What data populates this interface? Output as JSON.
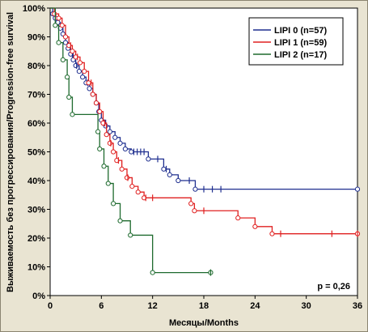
{
  "chart_data": {
    "type": "line",
    "xlabel": "Месяцы/Months",
    "ylabel": "Выживаемость без прогрессирования/Progression-free survival",
    "xlim": [
      0,
      36
    ],
    "ylim": [
      0,
      100
    ],
    "xticks": [
      0,
      6,
      12,
      18,
      24,
      30,
      36
    ],
    "yticks": [
      0,
      10,
      20,
      30,
      40,
      50,
      60,
      70,
      80,
      90,
      100
    ],
    "ytick_labels": [
      "0%",
      "10%",
      "20%",
      "30%",
      "40%",
      "50%",
      "60%",
      "70%",
      "80%",
      "90%",
      "100%"
    ],
    "grid": false,
    "legend_position": "top-right",
    "annotation": "p = 0,26",
    "series": [
      {
        "name": "LIPI 0 (n=57)",
        "color": "#1f2f8f",
        "steps": [
          [
            0,
            100
          ],
          [
            0.3,
            98
          ],
          [
            0.6,
            96.5
          ],
          [
            0.9,
            95
          ],
          [
            1.2,
            93
          ],
          [
            1.5,
            91
          ],
          [
            1.8,
            88
          ],
          [
            2.1,
            86
          ],
          [
            2.4,
            84
          ],
          [
            2.7,
            82
          ],
          [
            3.0,
            80
          ],
          [
            3.4,
            78
          ],
          [
            3.8,
            76
          ],
          [
            4.2,
            74
          ],
          [
            4.6,
            72
          ],
          [
            5.0,
            70
          ],
          [
            5.4,
            67
          ],
          [
            5.7,
            64
          ],
          [
            6.0,
            61
          ],
          [
            6.5,
            59
          ],
          [
            7.0,
            57
          ],
          [
            7.6,
            55
          ],
          [
            8.2,
            53
          ],
          [
            8.8,
            51
          ],
          [
            9.5,
            50
          ],
          [
            11.5,
            47.5
          ],
          [
            13.3,
            44
          ],
          [
            14.0,
            42
          ],
          [
            15.0,
            40
          ],
          [
            17.0,
            37
          ],
          [
            36,
            37
          ]
        ],
        "censors": [
          [
            2.6,
            84
          ],
          [
            3.1,
            80
          ],
          [
            4.4,
            74
          ],
          [
            6.2,
            61
          ],
          [
            9.8,
            50
          ],
          [
            10.2,
            50
          ],
          [
            10.6,
            50
          ],
          [
            11.0,
            50
          ],
          [
            12.6,
            47.5
          ],
          [
            13.6,
            44
          ],
          [
            16.3,
            40
          ],
          [
            18.0,
            37
          ],
          [
            19.0,
            37
          ],
          [
            20.0,
            37
          ]
        ]
      },
      {
        "name": "LIPI 1 (n=59)",
        "color": "#e02020",
        "steps": [
          [
            0,
            100
          ],
          [
            0.5,
            98
          ],
          [
            1.0,
            96.5
          ],
          [
            1.4,
            94
          ],
          [
            1.8,
            90
          ],
          [
            2.2,
            87
          ],
          [
            2.6,
            85
          ],
          [
            3.0,
            83
          ],
          [
            3.5,
            81
          ],
          [
            4.0,
            78
          ],
          [
            4.5,
            74
          ],
          [
            5.0,
            70
          ],
          [
            5.4,
            67
          ],
          [
            5.8,
            64
          ],
          [
            6.2,
            60
          ],
          [
            6.6,
            56
          ],
          [
            7.0,
            53
          ],
          [
            7.4,
            50
          ],
          [
            7.8,
            47
          ],
          [
            8.4,
            44
          ],
          [
            9.0,
            41
          ],
          [
            9.6,
            38
          ],
          [
            10.3,
            36
          ],
          [
            11.0,
            34
          ],
          [
            16.5,
            32
          ],
          [
            16.9,
            29.5
          ],
          [
            22.0,
            27
          ],
          [
            24.0,
            24
          ],
          [
            26.0,
            21.5
          ],
          [
            36,
            21.5
          ]
        ],
        "censors": [
          [
            2.4,
            87
          ],
          [
            3.2,
            83
          ],
          [
            4.8,
            74
          ],
          [
            6.4,
            60
          ],
          [
            7.1,
            53
          ],
          [
            8.0,
            47
          ],
          [
            9.1,
            41
          ],
          [
            11.2,
            34
          ],
          [
            12.0,
            34
          ],
          [
            18.0,
            29.5
          ],
          [
            27.0,
            21.5
          ],
          [
            33.0,
            21.5
          ],
          [
            36.0,
            21.5
          ]
        ]
      },
      {
        "name": "LIPI 2 (n=17)",
        "color": "#1e6a2e",
        "steps": [
          [
            0,
            100
          ],
          [
            0.6,
            94
          ],
          [
            1.0,
            88
          ],
          [
            1.5,
            82
          ],
          [
            2.0,
            76
          ],
          [
            2.2,
            69
          ],
          [
            2.6,
            63
          ],
          [
            5.6,
            57
          ],
          [
            5.8,
            51
          ],
          [
            6.3,
            45
          ],
          [
            6.8,
            39
          ],
          [
            7.4,
            32
          ],
          [
            8.2,
            26
          ],
          [
            9.4,
            21
          ],
          [
            12.0,
            8
          ],
          [
            18.8,
            8
          ]
        ],
        "censors": [
          [
            18.8,
            8
          ]
        ]
      }
    ]
  }
}
